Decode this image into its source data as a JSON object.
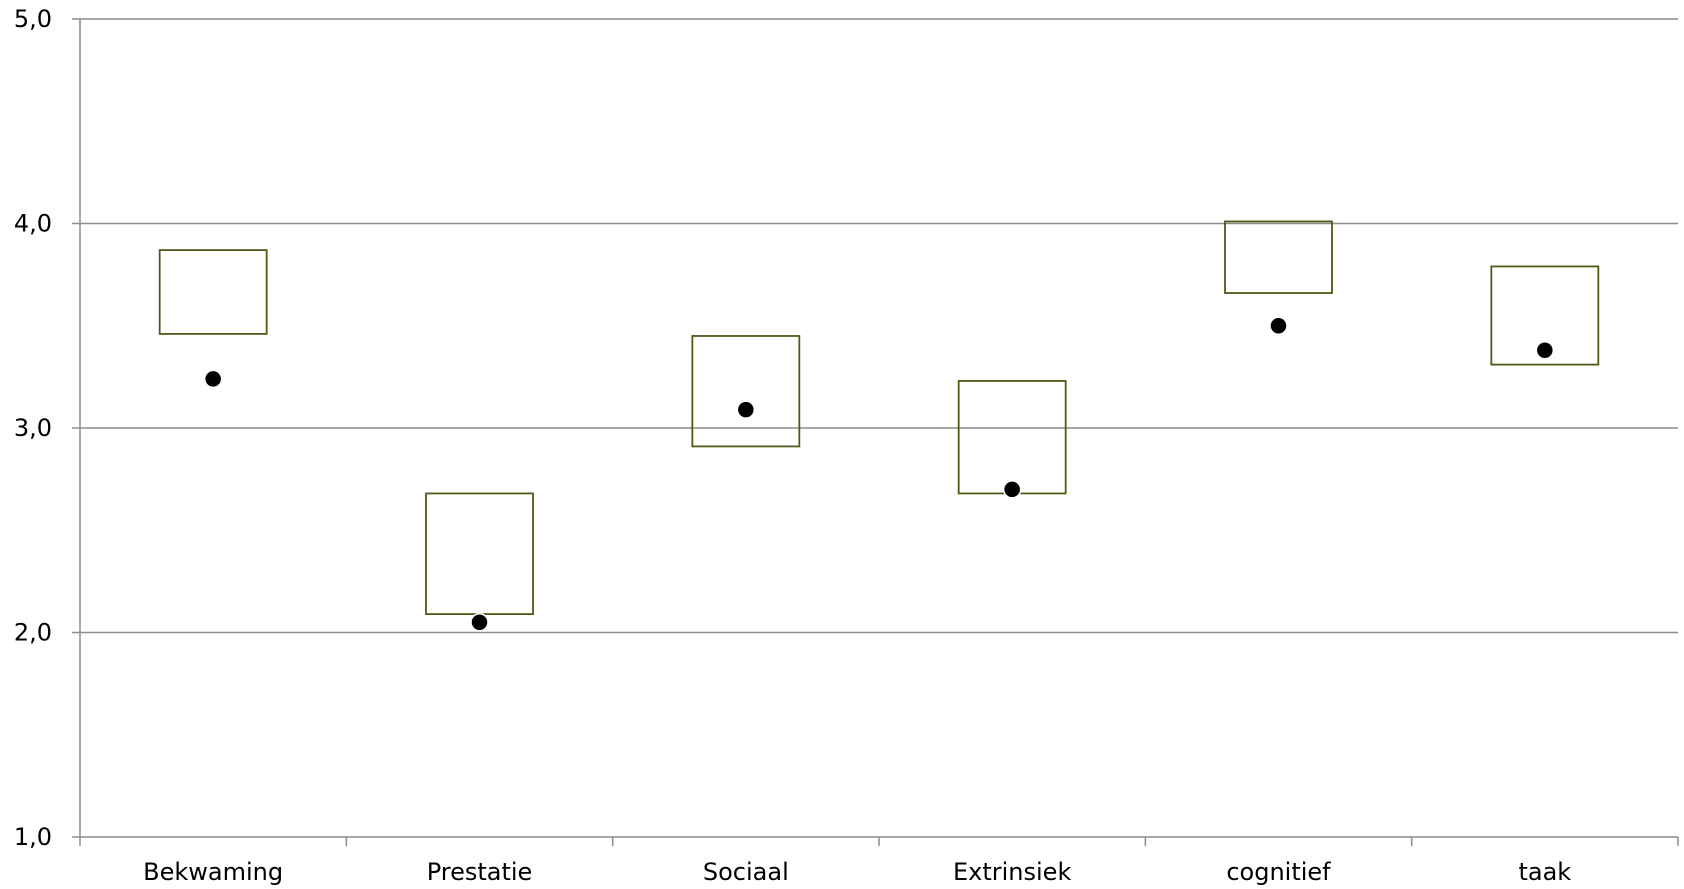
{
  "chart_data": {
    "type": "scatter",
    "title": "",
    "xlabel": "",
    "ylabel": "",
    "ylim": [
      1.0,
      5.0
    ],
    "y_ticks": [
      "1,0",
      "2,0",
      "3,0",
      "4,0",
      "5,0"
    ],
    "y_tick_values": [
      1.0,
      2.0,
      3.0,
      4.0,
      5.0
    ],
    "grid": "horizontal",
    "legend": "none",
    "categories": [
      "Bekwaming",
      "Prestatie",
      "Sociaal",
      "Extrinsiek",
      "cognitief",
      "taak"
    ],
    "ranges": [
      {
        "low": 3.46,
        "high": 3.87
      },
      {
        "low": 2.09,
        "high": 2.68
      },
      {
        "low": 2.91,
        "high": 3.45
      },
      {
        "low": 2.68,
        "high": 3.23
      },
      {
        "low": 3.66,
        "high": 4.01
      },
      {
        "low": 3.31,
        "high": 3.79
      }
    ],
    "points": [
      3.24,
      2.05,
      3.09,
      2.7,
      3.5,
      3.38
    ],
    "colors": {
      "box": "#4f5a17",
      "point": "#000000",
      "grid": "#8c8c8c",
      "axis": "#8c8c8c"
    }
  }
}
